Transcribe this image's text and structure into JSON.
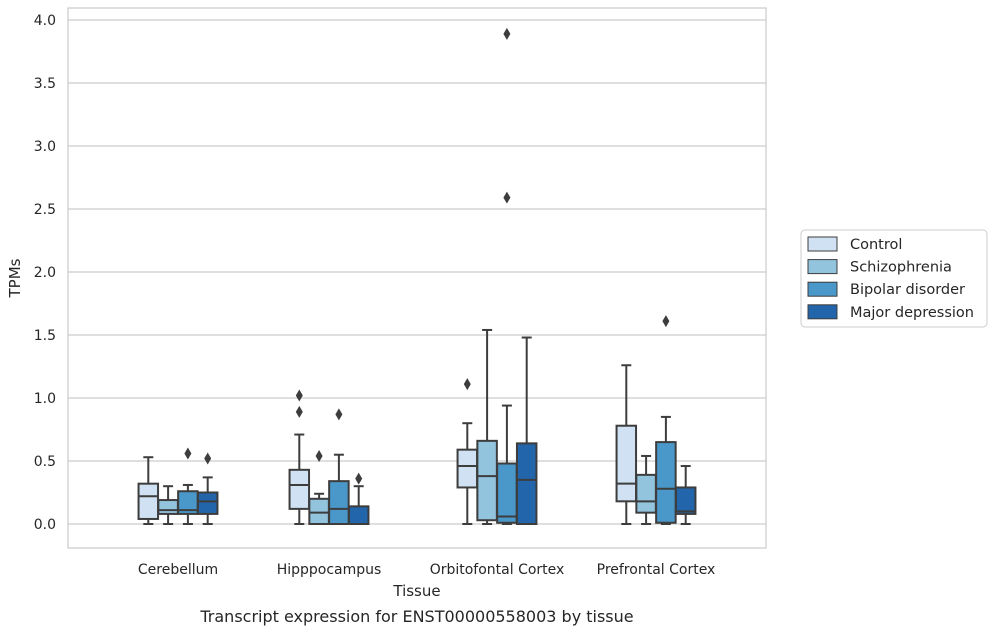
{
  "chart_data": {
    "type": "box",
    "xlabel": "Tissue",
    "ylabel": "TPMs",
    "caption": "Transcript expression for ENST00000558003 by tissue",
    "categories": [
      "Cerebellum",
      "Hipppocampus",
      "Orbitofontal Cortex",
      "Prefrontal Cortex"
    ],
    "ylim": [
      -0.19,
      4.09
    ],
    "yticks": [
      "0.0",
      "0.5",
      "1.0",
      "1.5",
      "2.0",
      "2.5",
      "3.0",
      "3.5",
      "4.0"
    ],
    "grid": "horizontal",
    "legend_position": "right",
    "series": [
      {
        "name": "Control",
        "color": "#cfe1f2",
        "boxes": [
          {
            "whislo": 0.0,
            "q1": 0.04,
            "med": 0.22,
            "q3": 0.32,
            "whishi": 0.53,
            "fliers": []
          },
          {
            "whislo": 0.0,
            "q1": 0.12,
            "med": 0.31,
            "q3": 0.43,
            "whishi": 0.71,
            "fliers": [
              0.89,
              1.02
            ]
          },
          {
            "whislo": 0.0,
            "q1": 0.29,
            "med": 0.46,
            "q3": 0.59,
            "whishi": 0.8,
            "fliers": [
              1.11
            ]
          },
          {
            "whislo": 0.0,
            "q1": 0.18,
            "med": 0.32,
            "q3": 0.78,
            "whishi": 1.26,
            "fliers": []
          }
        ]
      },
      {
        "name": "Schizophrenia",
        "color": "#93c4de",
        "boxes": [
          {
            "whislo": 0.0,
            "q1": 0.08,
            "med": 0.11,
            "q3": 0.19,
            "whishi": 0.3,
            "fliers": []
          },
          {
            "whislo": 0.0,
            "q1": 0.0,
            "med": 0.09,
            "q3": 0.2,
            "whishi": 0.24,
            "fliers": [
              0.54
            ]
          },
          {
            "whislo": 0.0,
            "q1": 0.03,
            "med": 0.38,
            "q3": 0.66,
            "whishi": 1.54,
            "fliers": []
          },
          {
            "whislo": 0.0,
            "q1": 0.09,
            "med": 0.18,
            "q3": 0.39,
            "whishi": 0.54,
            "fliers": []
          }
        ]
      },
      {
        "name": "Bipolar disorder",
        "color": "#4a98c9",
        "boxes": [
          {
            "whislo": 0.0,
            "q1": 0.08,
            "med": 0.11,
            "q3": 0.26,
            "whishi": 0.31,
            "fliers": [
              0.56
            ]
          },
          {
            "whislo": 0.0,
            "q1": 0.0,
            "med": 0.12,
            "q3": 0.34,
            "whishi": 0.55,
            "fliers": [
              0.87
            ]
          },
          {
            "whislo": 0.0,
            "q1": 0.01,
            "med": 0.06,
            "q3": 0.48,
            "whishi": 0.94,
            "fliers": [
              2.59,
              3.89
            ]
          },
          {
            "whislo": 0.0,
            "q1": 0.01,
            "med": 0.28,
            "q3": 0.65,
            "whishi": 0.85,
            "fliers": [
              1.61
            ]
          }
        ]
      },
      {
        "name": "Major depression",
        "color": "#2265aa",
        "boxes": [
          {
            "whislo": 0.0,
            "q1": 0.08,
            "med": 0.18,
            "q3": 0.25,
            "whishi": 0.37,
            "fliers": [
              0.52
            ]
          },
          {
            "whislo": 0.0,
            "q1": 0.0,
            "med": 0.0,
            "q3": 0.14,
            "whishi": 0.3,
            "fliers": [
              0.36
            ]
          },
          {
            "whislo": 0.0,
            "q1": 0.0,
            "med": 0.35,
            "q3": 0.64,
            "whishi": 1.48,
            "fliers": []
          },
          {
            "whislo": 0.0,
            "q1": 0.08,
            "med": 0.1,
            "q3": 0.29,
            "whishi": 0.46,
            "fliers": []
          }
        ]
      }
    ]
  }
}
